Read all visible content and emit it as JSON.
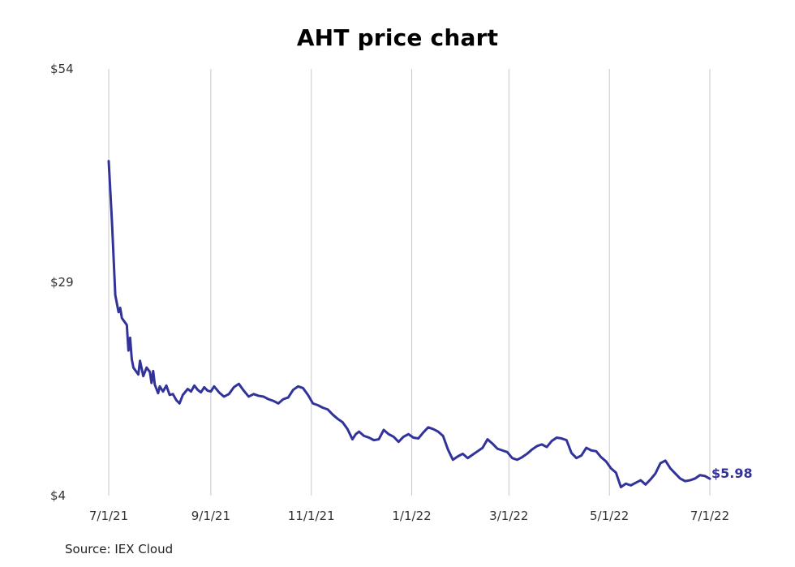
{
  "chart_data": {
    "type": "line",
    "title": "AHT price chart",
    "source": "Source: IEX Cloud",
    "xlabel": "",
    "ylabel": "",
    "x_ticks": [
      "7/1/21",
      "9/1/21",
      "11/1/21",
      "1/1/22",
      "3/1/22",
      "5/1/22",
      "7/1/22"
    ],
    "x_range": [
      "2021-07-01",
      "2022-07-01"
    ],
    "y_ticks": [
      "$4",
      "$29",
      "$54"
    ],
    "ylim": [
      4,
      54
    ],
    "grid": "vertical",
    "last_value_label": "$5.98",
    "line_color": "#32339a",
    "series": [
      {
        "x": [
          "2021-07-01",
          "2021-07-03",
          "2021-07-05",
          "2021-07-07",
          "2021-07-08",
          "2021-07-09",
          "2021-07-12",
          "2021-07-13",
          "2021-07-14",
          "2021-07-15",
          "2021-07-16",
          "2021-07-19",
          "2021-07-20",
          "2021-07-22",
          "2021-07-24",
          "2021-07-26",
          "2021-07-27",
          "2021-07-28",
          "2021-07-29",
          "2021-07-31",
          "2021-08-01",
          "2021-08-03",
          "2021-08-05",
          "2021-08-07",
          "2021-08-09",
          "2021-08-11",
          "2021-08-13",
          "2021-08-15",
          "2021-08-18",
          "2021-08-20",
          "2021-08-22",
          "2021-08-24",
          "2021-08-26",
          "2021-08-28",
          "2021-08-30",
          "2021-09-01",
          "2021-09-03",
          "2021-09-06",
          "2021-09-09",
          "2021-09-12",
          "2021-09-15",
          "2021-09-18",
          "2021-09-21",
          "2021-09-24",
          "2021-09-27",
          "2021-09-30",
          "2021-10-03",
          "2021-10-06",
          "2021-10-09",
          "2021-10-12",
          "2021-10-15",
          "2021-10-18",
          "2021-10-21",
          "2021-10-24",
          "2021-10-27",
          "2021-10-30",
          "2021-11-02",
          "2021-11-05",
          "2021-11-08",
          "2021-11-11",
          "2021-11-14",
          "2021-11-17",
          "2021-11-20",
          "2021-11-23",
          "2021-11-26",
          "2021-11-28",
          "2021-11-30",
          "2021-12-03",
          "2021-12-06",
          "2021-12-09",
          "2021-12-12",
          "2021-12-15",
          "2021-12-18",
          "2021-12-21",
          "2021-12-24",
          "2021-12-27",
          "2021-12-30",
          "2022-01-02",
          "2022-01-05",
          "2022-01-08",
          "2022-01-11",
          "2022-01-14",
          "2022-01-17",
          "2022-01-20",
          "2022-01-23",
          "2022-01-26",
          "2022-01-29",
          "2022-02-01",
          "2022-02-04",
          "2022-02-07",
          "2022-02-10",
          "2022-02-13",
          "2022-02-16",
          "2022-02-19",
          "2022-02-22",
          "2022-02-25",
          "2022-02-28",
          "2022-03-03",
          "2022-03-06",
          "2022-03-09",
          "2022-03-12",
          "2022-03-15",
          "2022-03-18",
          "2022-03-21",
          "2022-03-24",
          "2022-03-27",
          "2022-03-30",
          "2022-04-02",
          "2022-04-05",
          "2022-04-08",
          "2022-04-11",
          "2022-04-14",
          "2022-04-17",
          "2022-04-20",
          "2022-04-23",
          "2022-04-26",
          "2022-04-29",
          "2022-05-02",
          "2022-05-05",
          "2022-05-08",
          "2022-05-11",
          "2022-05-14",
          "2022-05-17",
          "2022-05-20",
          "2022-05-23",
          "2022-05-26",
          "2022-05-29",
          "2022-06-01",
          "2022-06-04",
          "2022-06-07",
          "2022-06-10",
          "2022-06-13",
          "2022-06-16",
          "2022-06-19",
          "2022-06-22",
          "2022-06-25",
          "2022-06-28",
          "2022-07-01"
        ],
        "values": [
          43.2,
          36.0,
          27.5,
          25.5,
          26.0,
          24.8,
          24.0,
          21.0,
          22.5,
          20.0,
          19.0,
          18.2,
          19.8,
          18.0,
          19.0,
          18.5,
          17.2,
          18.6,
          17.0,
          16.0,
          16.8,
          16.2,
          16.9,
          15.8,
          15.9,
          15.2,
          14.8,
          15.8,
          16.5,
          16.2,
          16.9,
          16.4,
          16.1,
          16.7,
          16.3,
          16.2,
          16.8,
          16.1,
          15.6,
          15.9,
          16.7,
          17.1,
          16.3,
          15.6,
          15.9,
          15.7,
          15.6,
          15.3,
          15.1,
          14.8,
          15.3,
          15.5,
          16.4,
          16.8,
          16.6,
          15.8,
          14.8,
          14.6,
          14.3,
          14.1,
          13.5,
          13.0,
          12.6,
          11.8,
          10.6,
          11.2,
          11.5,
          11.0,
          10.8,
          10.5,
          10.6,
          11.7,
          11.2,
          10.9,
          10.3,
          10.9,
          11.2,
          10.8,
          10.7,
          11.4,
          12.0,
          11.8,
          11.5,
          11.0,
          9.4,
          8.2,
          8.6,
          8.9,
          8.4,
          8.8,
          9.2,
          9.6,
          10.6,
          10.1,
          9.5,
          9.3,
          9.1,
          8.4,
          8.2,
          8.5,
          8.9,
          9.4,
          9.8,
          10.0,
          9.7,
          10.4,
          10.8,
          10.7,
          10.5,
          9.0,
          8.4,
          8.7,
          9.6,
          9.3,
          9.2,
          8.5,
          8.0,
          7.2,
          6.7,
          5.0,
          5.4,
          5.2,
          5.5,
          5.8,
          5.3,
          5.9,
          6.6,
          7.8,
          8.1,
          7.2,
          6.6,
          6.0,
          5.7,
          5.8,
          6.0,
          6.4,
          6.3,
          5.98
        ]
      }
    ]
  },
  "colors": {
    "line": "#32339a",
    "grid": "#c8c8c8",
    "tick_text": "#333333"
  }
}
